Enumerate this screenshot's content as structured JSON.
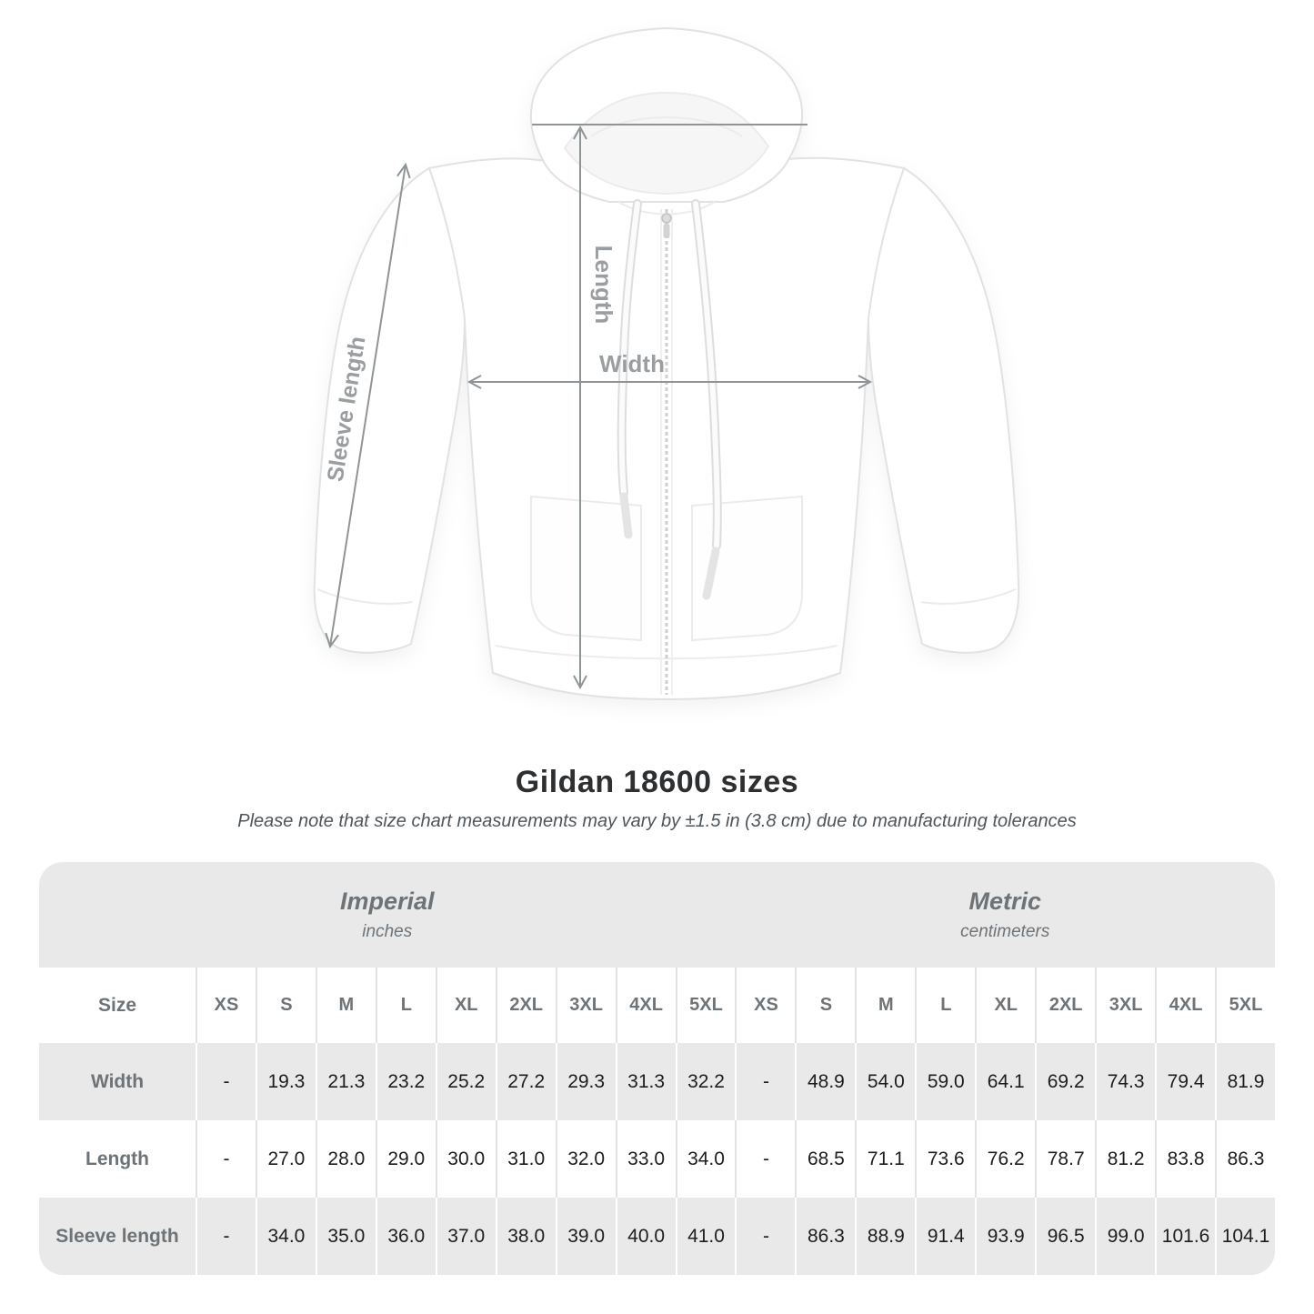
{
  "title": "Gildan 18600 sizes",
  "subtitle": "Please note that size chart measurements may vary by ±1.5 in (3.8 cm) due to manufacturing tolerances",
  "diagram": {
    "garment": "zip-hoodie",
    "length_label": "Length",
    "width_label": "Width",
    "sleeve_label": "Sleeve length"
  },
  "table": {
    "corner_label": "Size",
    "groups": [
      {
        "name": "Imperial",
        "unit": "inches"
      },
      {
        "name": "Metric",
        "unit": "centimeters"
      }
    ],
    "sizes": [
      "XS",
      "S",
      "M",
      "L",
      "XL",
      "2XL",
      "3XL",
      "4XL",
      "5XL"
    ],
    "rows": [
      {
        "label": "Width",
        "imperial": [
          "-",
          "19.3",
          "21.3",
          "23.2",
          "25.2",
          "27.2",
          "29.3",
          "31.3",
          "32.2"
        ],
        "metric": [
          "-",
          "48.9",
          "54.0",
          "59.0",
          "64.1",
          "69.2",
          "74.3",
          "79.4",
          "81.9"
        ]
      },
      {
        "label": "Length",
        "imperial": [
          "-",
          "27.0",
          "28.0",
          "29.0",
          "30.0",
          "31.0",
          "32.0",
          "33.0",
          "34.0"
        ],
        "metric": [
          "-",
          "68.5",
          "71.1",
          "73.6",
          "76.2",
          "78.7",
          "81.2",
          "83.8",
          "86.3"
        ]
      },
      {
        "label": "Sleeve length",
        "imperial": [
          "-",
          "34.0",
          "35.0",
          "36.0",
          "37.0",
          "38.0",
          "39.0",
          "40.0",
          "41.0"
        ],
        "metric": [
          "-",
          "86.3",
          "88.9",
          "91.4",
          "93.9",
          "96.5",
          "99.0",
          "101.6",
          "104.1"
        ]
      }
    ]
  },
  "colors": {
    "row-gray": "#e9e9e9",
    "header-text": "#6e7377",
    "value-text": "#1d1d1d",
    "annotation": "#8f9497",
    "label-color": "#9a9ea1",
    "title-color": "#2d2f31",
    "subtitle-color": "#4e555a"
  }
}
